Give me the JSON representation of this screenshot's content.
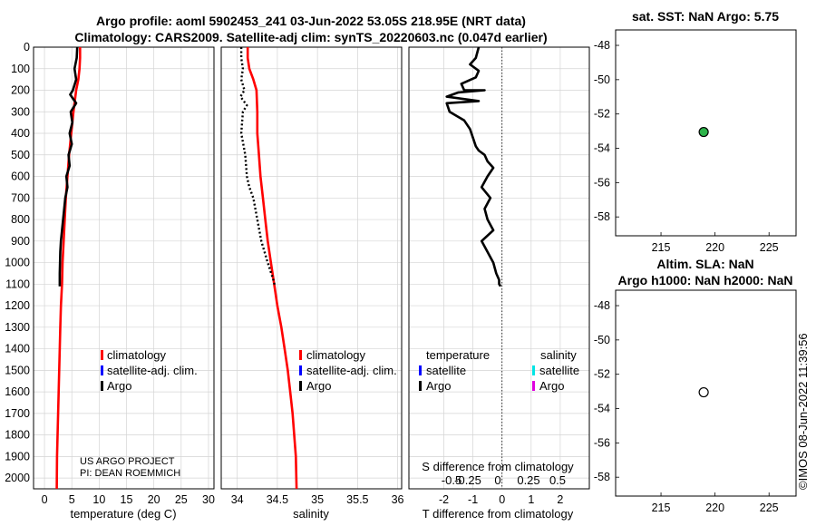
{
  "header": {
    "title_line1": "Argo profile: aoml 5902453_241 03-Jun-2022 53.05S 218.95E (NRT data)",
    "title_line2": "Climatology: CARS2009. Satellite-adj clim: synTS_20220603.nc (0.047d earlier)"
  },
  "credit": {
    "project": "US ARGO PROJECT",
    "pi": "PI: DEAN ROEMMICH",
    "stamp": "©IMOS 08-Jun-2022 11:39:56"
  },
  "colors": {
    "climatology": "#ff0000",
    "satellite_adj": "#0000ff",
    "argo": "#000000",
    "sat_temp": "#0000ff",
    "sat_sal_cyan": "#00e5e5",
    "sat_sal_magenta": "#e000e0",
    "marker_fill": "#2db34a"
  },
  "legend": {
    "climatology": "climatology",
    "satellite": "satellite-adj. clim.",
    "argo": "Argo"
  },
  "diff_legend": {
    "temperature": "temperature",
    "salinity": "salinity",
    "satellite": "satellite",
    "argo": "Argo"
  },
  "chart_data": [
    {
      "type": "line",
      "id": "temperature",
      "xlabel": "temperature (deg C)",
      "xlim": [
        -2,
        31
      ],
      "ylim": [
        2050,
        0
      ],
      "xticks": [
        0,
        5,
        10,
        15,
        20,
        25,
        30
      ],
      "yticks": [
        0,
        100,
        200,
        300,
        400,
        500,
        600,
        700,
        800,
        900,
        1000,
        1100,
        1200,
        1300,
        1400,
        1500,
        1600,
        1700,
        1800,
        1900,
        2000
      ],
      "series": [
        {
          "name": "climatology",
          "style": "solid",
          "x": [
            6.5,
            6.5,
            6.4,
            6.2,
            5.8,
            5.3,
            4.9,
            4.5,
            4.2,
            3.9,
            3.7,
            3.5,
            3.3,
            3.2,
            3.0,
            2.9,
            2.8,
            2.7,
            2.6,
            2.5,
            2.4,
            2.3,
            2.25
          ],
          "y": [
            0,
            50,
            100,
            150,
            200,
            300,
            400,
            500,
            600,
            700,
            800,
            900,
            1000,
            1100,
            1200,
            1300,
            1400,
            1500,
            1600,
            1700,
            1800,
            1900,
            2050
          ]
        },
        {
          "name": "Argo",
          "style": "solid",
          "x": [
            6.0,
            5.9,
            5.5,
            5.8,
            5.2,
            4.7,
            5.8,
            4.8,
            5.1,
            4.6,
            5.0,
            4.4,
            4.6,
            4.0,
            4.2,
            3.8,
            3.6,
            3.4,
            3.2,
            3.0,
            2.9,
            2.8,
            2.8
          ],
          "y": [
            0,
            50,
            100,
            150,
            200,
            220,
            260,
            300,
            350,
            400,
            450,
            500,
            550,
            600,
            650,
            700,
            750,
            800,
            850,
            900,
            950,
            1050,
            1110
          ]
        }
      ]
    },
    {
      "type": "line",
      "id": "salinity",
      "xlabel": "salinity",
      "xlim": [
        33.8,
        36.05
      ],
      "ylim": [
        2050,
        0
      ],
      "xticks": [
        34,
        34.5,
        35,
        35.5,
        36
      ],
      "series": [
        {
          "name": "climatology",
          "style": "solid",
          "x": [
            34.13,
            34.13,
            34.15,
            34.2,
            34.24,
            34.25,
            34.25,
            34.27,
            34.29,
            34.32,
            34.35,
            34.38,
            34.42,
            34.46,
            34.5,
            34.55,
            34.59,
            34.63,
            34.66,
            34.69,
            34.71,
            34.73,
            34.74
          ],
          "y": [
            0,
            50,
            100,
            150,
            200,
            300,
            400,
            500,
            600,
            700,
            800,
            900,
            1000,
            1100,
            1200,
            1300,
            1400,
            1500,
            1600,
            1700,
            1800,
            1900,
            2050
          ]
        },
        {
          "name": "Argo",
          "style": "dotted",
          "x": [
            34.05,
            34.05,
            34.07,
            34.05,
            34.09,
            34.04,
            34.12,
            34.07,
            34.05,
            34.1,
            34.12,
            34.15,
            34.2,
            34.25,
            34.3,
            34.38,
            34.45,
            34.47
          ],
          "y": [
            0,
            50,
            100,
            150,
            200,
            230,
            270,
            300,
            400,
            500,
            600,
            650,
            700,
            800,
            900,
            1000,
            1080,
            1110
          ]
        }
      ]
    },
    {
      "type": "line",
      "id": "difference",
      "xlabel": "T difference from climatology",
      "top_axis_label": "S difference from climatology",
      "xlim": [
        -3.2,
        3.0
      ],
      "ylim": [
        2050,
        0
      ],
      "xticks": [
        -2,
        -1,
        0,
        1,
        2
      ],
      "top_ticks": [
        "-0.5",
        "-0.25",
        "0",
        "0.25",
        "0.5"
      ],
      "series": [
        {
          "name": "Argo",
          "style": "solid",
          "x": [
            -0.8,
            -0.9,
            -1.1,
            -0.8,
            -0.9,
            -1.4,
            -1.3,
            -0.6,
            -1.5,
            -1.9,
            -0.8,
            -1.9,
            -1.8,
            -1.3,
            -1.1,
            -1.0,
            -0.9,
            -0.8,
            -0.6,
            -0.5,
            -0.3,
            -0.5,
            -0.7,
            -0.4,
            -0.6,
            -0.5,
            -0.3,
            -0.7,
            -0.5,
            -0.3,
            -0.2,
            -0.1,
            -0.1,
            -0.05
          ],
          "y": [
            0,
            50,
            80,
            110,
            140,
            170,
            200,
            200,
            210,
            230,
            250,
            260,
            300,
            340,
            380,
            420,
            460,
            480,
            500,
            530,
            560,
            600,
            650,
            700,
            750,
            800,
            850,
            900,
            950,
            1000,
            1050,
            1080,
            1100,
            1110
          ]
        }
      ]
    },
    {
      "type": "scatter",
      "id": "sat_sst",
      "title": "sat. SST: NaN Argo: 5.75",
      "xlim": [
        210.8,
        227.5
      ],
      "ylim": [
        -59.1,
        -47.1
      ],
      "xticks": [
        215,
        220,
        225
      ],
      "yticks": [
        -48,
        -50,
        -52,
        -54,
        -56,
        -58
      ],
      "points": [
        {
          "x": 218.95,
          "y": -53.05,
          "filled": true
        }
      ]
    },
    {
      "type": "scatter",
      "id": "altim",
      "title_line1": "Altim. SLA: NaN",
      "title_line2": "Argo h1000: NaN h2000: NaN",
      "xlim": [
        210.8,
        227.5
      ],
      "ylim": [
        -59.1,
        -47.1
      ],
      "xticks": [
        215,
        220,
        225
      ],
      "yticks": [
        -48,
        -50,
        -52,
        -54,
        -56,
        -58
      ],
      "points": [
        {
          "x": 218.95,
          "y": -53.05,
          "filled": false
        }
      ]
    }
  ]
}
